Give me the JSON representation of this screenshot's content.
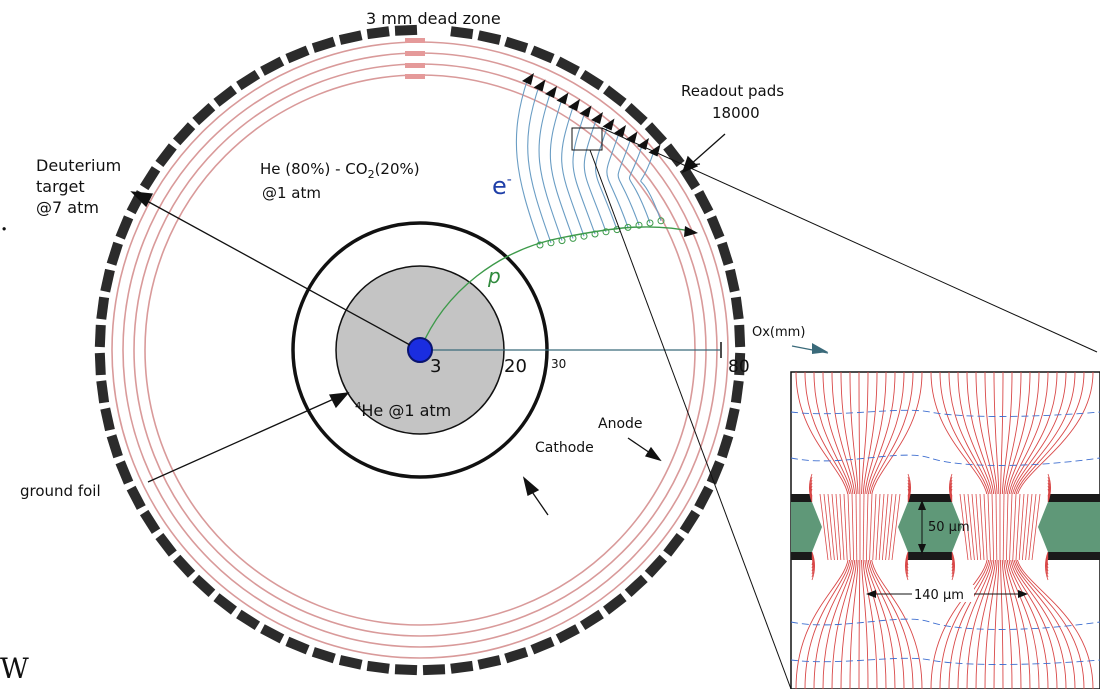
{
  "labels": {
    "dead_zone": "3 mm dead zone",
    "readout_line1": "Readout pads",
    "readout_line2": "18000",
    "target_line1": "Deuterium",
    "target_line2": "target",
    "target_line3": "@7 atm",
    "gas_line1a": "He (80%) - CO",
    "gas_line1b": "2",
    "gas_line1c": "(20%)",
    "gas_line2": "@1 atm",
    "electron": "e",
    "electron_sup": "-",
    "proton": "p",
    "axis_label": "Ox(mm)",
    "tick_3": "3",
    "tick_20": "20",
    "tick_30": "30",
    "tick_80": "80",
    "inner_gas_sup": "4",
    "inner_gas": "He @1 atm",
    "anode": "Anode",
    "cathode": "Cathode",
    "ground_foil": "ground foil",
    "gem_thickness": "50 µm",
    "gem_pitch": "140 µm",
    "stray_left_top": ".",
    "stray_left_bottom": "W"
  },
  "colors": {
    "pads": "#2b2b2b",
    "drift_circles": "#d9a3a3",
    "target_gas": "#c4c4c4",
    "target_core": "#1a2de0",
    "electron_tracks": "#6a9dc4",
    "proton_track": "#3d9a4a",
    "gem_copper": "#1a1a1a",
    "gem_kapton": "#5f9878",
    "field_lines": "#d94848",
    "equipotential": "#3f6fd0"
  }
}
